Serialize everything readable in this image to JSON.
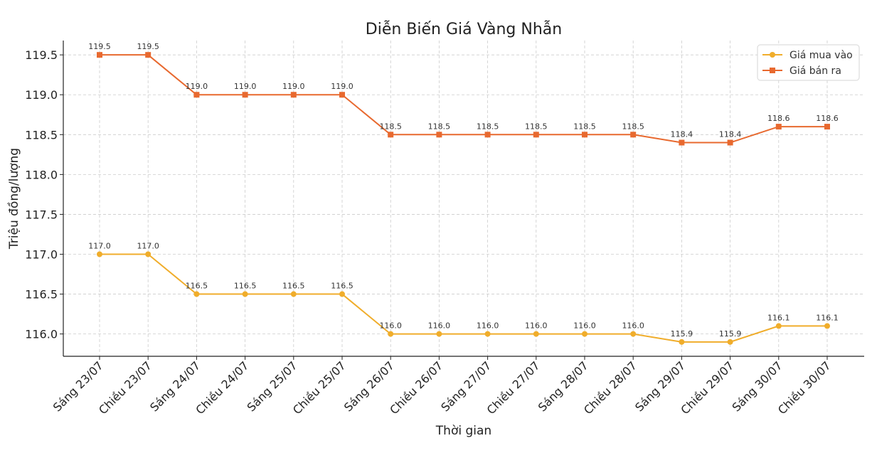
{
  "chart_data": {
    "type": "line",
    "title": "Diễn Biến Giá Vàng Nhẫn",
    "xlabel": "Thời gian",
    "ylabel": "Triệu đồng/lượng",
    "ylim": [
      115.72,
      119.68
    ],
    "yticks": [
      "116.0",
      "116.5",
      "117.0",
      "117.5",
      "118.0",
      "118.5",
      "119.0",
      "119.5"
    ],
    "ytick_values": [
      116.0,
      116.5,
      117.0,
      117.5,
      118.0,
      118.5,
      119.0,
      119.5
    ],
    "grid": true,
    "legend_position": "top-right",
    "categories": [
      "Sáng 23/07",
      "Chiều 23/07",
      "Sáng 24/07",
      "Chiều 24/07",
      "Sáng 25/07",
      "Chiều 25/07",
      "Sáng 26/07",
      "Chiều 26/07",
      "Sáng 27/07",
      "Chiều 27/07",
      "Sáng 28/07",
      "Chiều 28/07",
      "Sáng 29/07",
      "Chiều 29/07",
      "Sáng 30/07",
      "Chiều 30/07"
    ],
    "series": [
      {
        "name": "Giá mua vào",
        "color": "#f0ad2b",
        "marker": "circle",
        "values": [
          117.0,
          117.0,
          116.5,
          116.5,
          116.5,
          116.5,
          116.0,
          116.0,
          116.0,
          116.0,
          116.0,
          116.0,
          115.9,
          115.9,
          116.1,
          116.1
        ],
        "labels": [
          "117.0",
          "117.0",
          "116.5",
          "116.5",
          "116.5",
          "116.5",
          "116.0",
          "116.0",
          "116.0",
          "116.0",
          "116.0",
          "116.0",
          "115.9",
          "115.9",
          "116.1",
          "116.1"
        ]
      },
      {
        "name": "Giá bán ra",
        "color": "#e8692f",
        "marker": "square",
        "values": [
          119.5,
          119.5,
          119.0,
          119.0,
          119.0,
          119.0,
          118.5,
          118.5,
          118.5,
          118.5,
          118.5,
          118.5,
          118.4,
          118.4,
          118.6,
          118.6
        ],
        "labels": [
          "119.5",
          "119.5",
          "119.0",
          "119.0",
          "119.0",
          "119.0",
          "118.5",
          "118.5",
          "118.5",
          "118.5",
          "118.5",
          "118.5",
          "118.4",
          "118.4",
          "118.6",
          "118.6"
        ]
      }
    ]
  }
}
